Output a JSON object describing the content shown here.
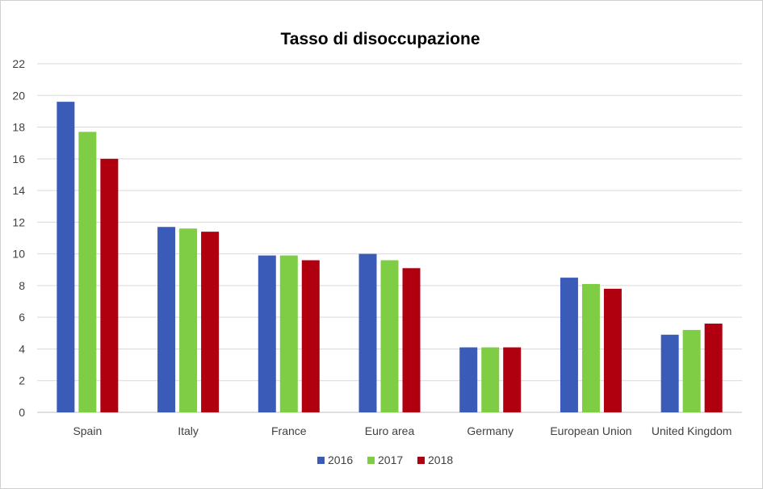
{
  "chart_data": {
    "type": "bar",
    "title": "Tasso di disoccupazione",
    "xlabel": "",
    "ylabel": "",
    "categories": [
      "Spain",
      "Italy",
      "France",
      "Euro area",
      "Germany",
      "European Union",
      "United Kingdom"
    ],
    "series": [
      {
        "name": "2016",
        "color": "#3a5bb8",
        "values": [
          19.6,
          11.7,
          9.9,
          10.0,
          4.1,
          8.5,
          4.9
        ]
      },
      {
        "name": "2017",
        "color": "#7fcc45",
        "values": [
          17.7,
          11.6,
          9.9,
          9.6,
          4.1,
          8.1,
          5.2
        ]
      },
      {
        "name": "2018",
        "color": "#b00010",
        "values": [
          16.0,
          11.4,
          9.6,
          9.1,
          4.1,
          7.8,
          5.6
        ]
      }
    ],
    "ylim": [
      0,
      22
    ],
    "yticks": [
      0,
      2,
      4,
      6,
      8,
      10,
      12,
      14,
      16,
      18,
      20,
      22
    ],
    "grid": true,
    "legend_position": "bottom"
  }
}
